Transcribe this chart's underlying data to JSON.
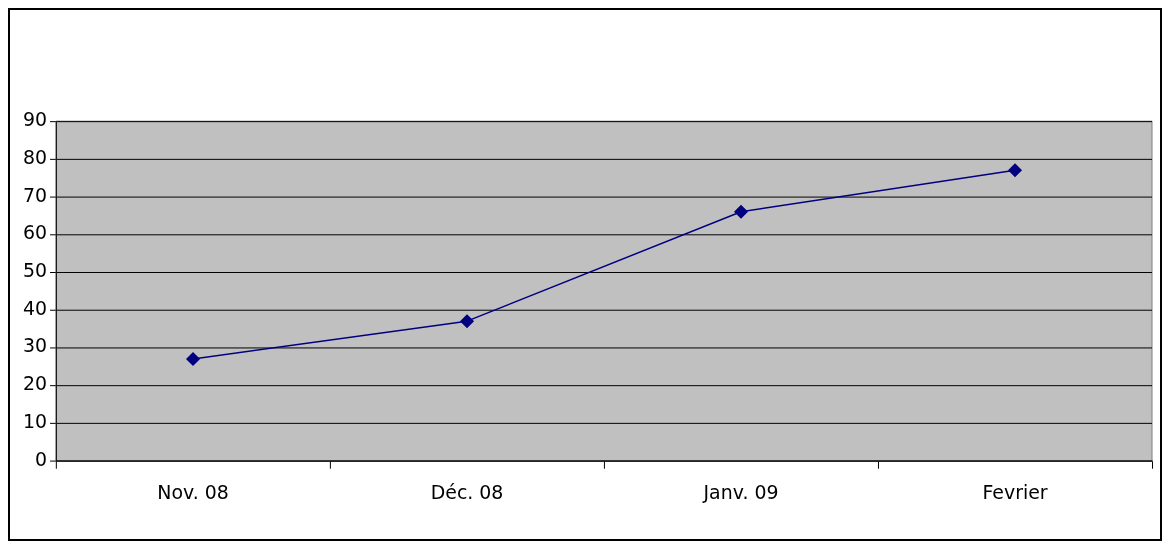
{
  "chart_data": {
    "type": "line",
    "categories": [
      "Nov. 08",
      "Déc. 08",
      "Janv. 09",
      "Fevrier"
    ],
    "series": [
      {
        "color": "#000080",
        "values": [
          27,
          37,
          66,
          77
        ]
      }
    ],
    "ylim": [
      0,
      90
    ],
    "yticks": [
      0,
      10,
      20,
      30,
      40,
      50,
      60,
      70,
      80,
      90
    ],
    "grid": "y",
    "legend": false,
    "marker": "diamond",
    "line_style": "solid"
  }
}
